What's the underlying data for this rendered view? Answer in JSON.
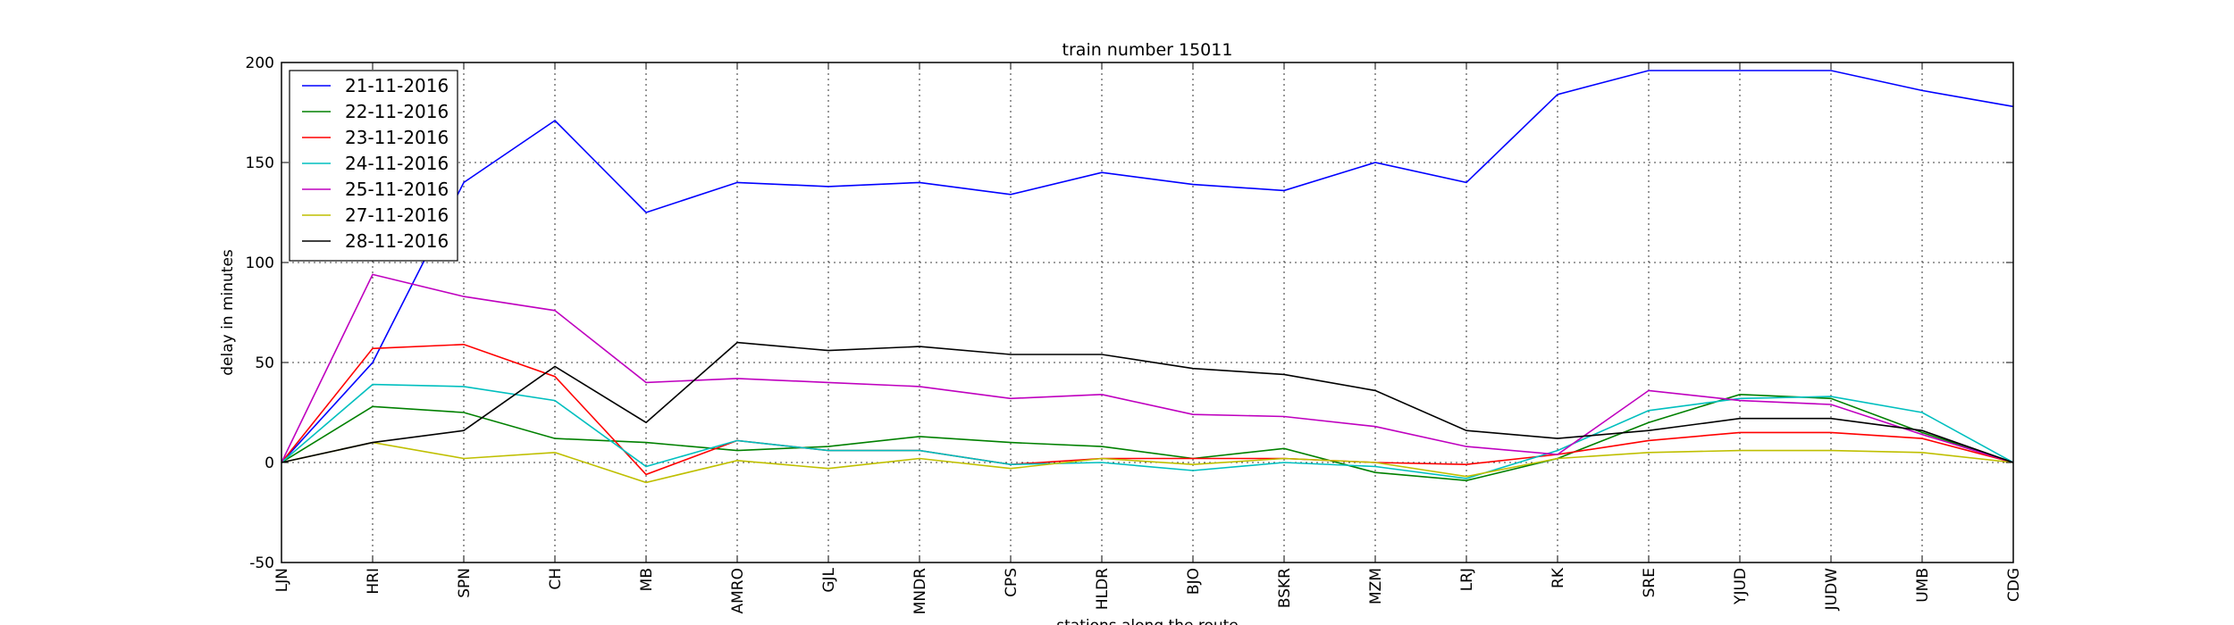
{
  "chart_data": {
    "type": "line",
    "title": "train number 15011",
    "xlabel": "stations along the route",
    "ylabel": "delay in minutes",
    "ylim": [
      -50,
      200
    ],
    "yticks": [
      -50,
      0,
      50,
      100,
      150,
      200
    ],
    "grid": true,
    "legend_position": "top-left",
    "categories": [
      "LJN",
      "HRI",
      "SPN",
      "CH",
      "MB",
      "AMRO",
      "GJL",
      "MNDR",
      "CPS",
      "HLDR",
      "BJO",
      "BSKR",
      "MZM",
      "LRJ",
      "RK",
      "SRE",
      "YJUD",
      "JUDW",
      "UMB",
      "CDG"
    ],
    "series": [
      {
        "name": "21-11-2016",
        "color": "#0000ff",
        "values": [
          0,
          50,
          140,
          171,
          125,
          140,
          138,
          140,
          134,
          145,
          139,
          136,
          150,
          140,
          184,
          196,
          196,
          196,
          186,
          178
        ]
      },
      {
        "name": "22-11-2016",
        "color": "#008000",
        "values": [
          0,
          28,
          25,
          12,
          10,
          6,
          8,
          13,
          10,
          8,
          2,
          7,
          -5,
          -9,
          2,
          20,
          34,
          32,
          15,
          0
        ]
      },
      {
        "name": "23-11-2016",
        "color": "#ff0000",
        "values": [
          0,
          57,
          59,
          43,
          -6,
          11,
          6,
          6,
          -1,
          2,
          2,
          2,
          0,
          -1,
          4,
          11,
          15,
          15,
          12,
          0
        ]
      },
      {
        "name": "24-11-2016",
        "color": "#00bfbf",
        "values": [
          0,
          39,
          38,
          31,
          -2,
          11,
          6,
          6,
          -1,
          0,
          -4,
          0,
          -2,
          -8,
          6,
          26,
          32,
          33,
          25,
          0
        ]
      },
      {
        "name": "25-11-2016",
        "color": "#bf00bf",
        "values": [
          0,
          94,
          83,
          76,
          40,
          42,
          40,
          38,
          32,
          34,
          24,
          23,
          18,
          8,
          4,
          36,
          31,
          29,
          14,
          0
        ]
      },
      {
        "name": "27-11-2016",
        "color": "#bfbf00",
        "values": [
          0,
          10,
          2,
          5,
          -10,
          1,
          -3,
          2,
          -3,
          2,
          -1,
          2,
          0,
          -7,
          2,
          5,
          6,
          6,
          5,
          0
        ]
      },
      {
        "name": "28-11-2016",
        "color": "#000000",
        "values": [
          0,
          10,
          16,
          48,
          20,
          60,
          56,
          58,
          54,
          54,
          47,
          44,
          36,
          16,
          12,
          16,
          22,
          22,
          16,
          0
        ]
      }
    ]
  }
}
